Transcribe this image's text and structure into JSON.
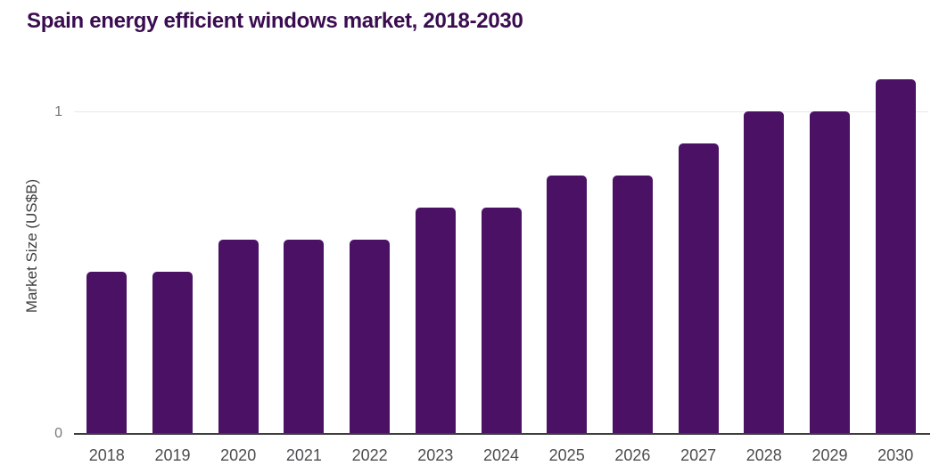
{
  "chart_data": {
    "type": "bar",
    "title": "Spain energy efficient windows market, 2018-2030",
    "xlabel": "",
    "ylabel": "Market Size (US$B)",
    "categories": [
      "2018",
      "2019",
      "2020",
      "2021",
      "2022",
      "2023",
      "2024",
      "2025",
      "2026",
      "2027",
      "2028",
      "2029",
      "2030"
    ],
    "values": [
      0.5,
      0.5,
      0.6,
      0.6,
      0.6,
      0.7,
      0.7,
      0.8,
      0.8,
      0.9,
      1.0,
      1.0,
      1.1
    ],
    "series": [
      {
        "name": "Market Size (US$B)",
        "values": [
          0.5,
          0.5,
          0.6,
          0.6,
          0.6,
          0.7,
          0.7,
          0.8,
          0.8,
          0.9,
          1.0,
          1.0,
          1.1
        ]
      }
    ],
    "y_ticks": [
      {
        "value": 0,
        "label": "0"
      },
      {
        "value": 1,
        "label": "1"
      }
    ],
    "ylim": [
      0,
      1.15
    ],
    "grid": "horizontal",
    "legend": "none",
    "colors": {
      "bar": "#4a1164",
      "title": "#3a0c50",
      "x_tick_text": "#4d4d4f",
      "y_tick_text": "#77787b",
      "y_axis_title": "#414042",
      "gridline": "#e7e7e7",
      "axis_line": "#3d3d3d",
      "background": "#ffffff"
    }
  }
}
